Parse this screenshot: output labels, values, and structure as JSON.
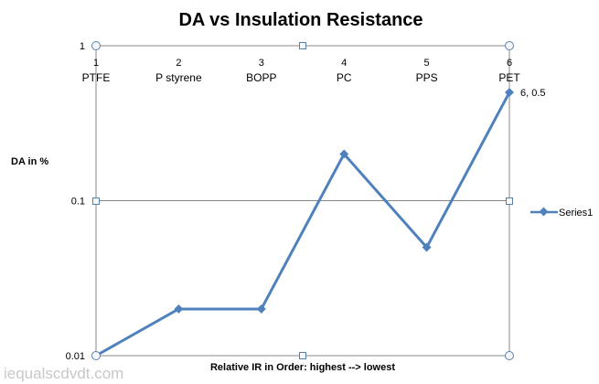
{
  "chart_data": {
    "type": "line",
    "title": "DA vs Insulation Resistance",
    "xlabel": "Relative IR in Order: highest --> lowest",
    "ylabel": "DA in %",
    "y_scale": "log",
    "ylim": [
      0.01,
      1
    ],
    "xlim": [
      1,
      6
    ],
    "y_ticks": [
      "1",
      "0.1",
      "0.01"
    ],
    "x": [
      1,
      2,
      3,
      4,
      5,
      6
    ],
    "x_tick_labels": [
      "1",
      "2",
      "3",
      "4",
      "5",
      "6"
    ],
    "categories": [
      "PTFE",
      "P styrene",
      "BOPP",
      "PC",
      "PPS",
      "PET"
    ],
    "series": [
      {
        "name": "Series1",
        "values": [
          0.01,
          0.02,
          0.02,
          0.2,
          0.05,
          0.5
        ],
        "color": "#4f81bd"
      }
    ],
    "annotations": [
      {
        "point_index": 5,
        "text": "6, 0.5"
      }
    ],
    "grid": true,
    "legend_position": "right"
  },
  "watermark": "iequalscdvdt.com"
}
